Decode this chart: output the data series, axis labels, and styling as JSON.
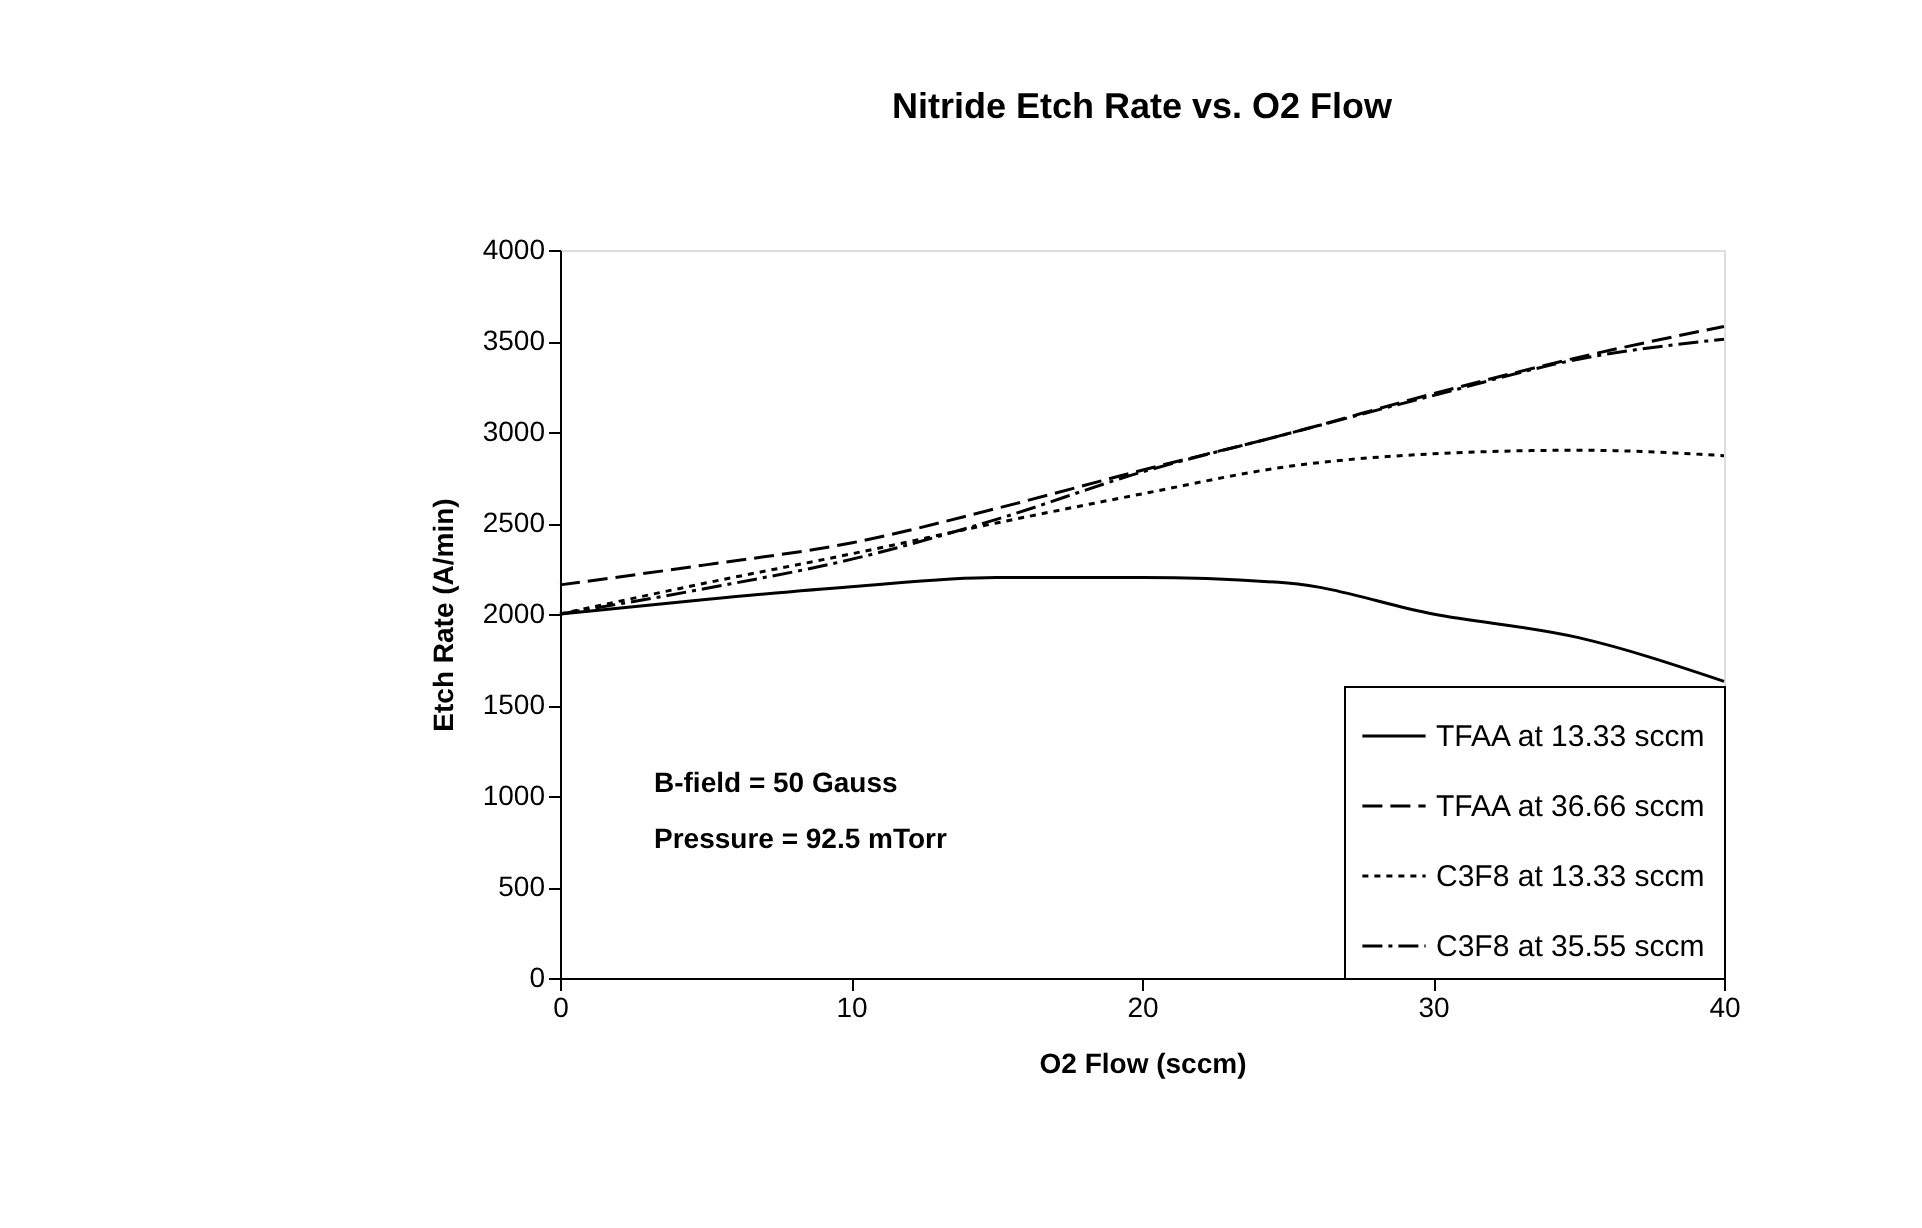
{
  "chart_data": {
    "type": "line",
    "title": "Nitride Etch Rate vs. O2 Flow",
    "xlabel": "O2 Flow (sccm)",
    "ylabel": "Etch Rate (A/min)",
    "x": [
      0,
      5,
      10,
      15,
      20,
      25,
      30,
      35,
      40
    ],
    "series": [
      {
        "name": "TFAA at 13.33 sccm",
        "color": "#000000",
        "line_style": "solid",
        "values": [
          2000,
          2080,
          2150,
          2200,
          2200,
          2170,
          2000,
          1870,
          1630
        ]
      },
      {
        "name": "TFAA at 36.66 sccm",
        "color": "#000000",
        "line_style": "dashed",
        "values": [
          2160,
          2270,
          2390,
          2580,
          2790,
          2990,
          3210,
          3410,
          3580
        ]
      },
      {
        "name": "C3F8 at 13.33 sccm",
        "color": "#000000",
        "line_style": "dotted",
        "values": [
          2000,
          2170,
          2330,
          2500,
          2660,
          2810,
          2880,
          2900,
          2870
        ]
      },
      {
        "name": "C3F8 at 35.55 sccm",
        "color": "#000000",
        "line_style": "dashdot",
        "values": [
          2000,
          2140,
          2300,
          2520,
          2780,
          2990,
          3200,
          3400,
          3510
        ]
      }
    ],
    "xlim": [
      0,
      40
    ],
    "xticks": [
      0,
      10,
      20,
      30,
      40
    ],
    "ylim": [
      0,
      4000
    ],
    "yticks": [
      0,
      500,
      1000,
      1500,
      2000,
      2500,
      3000,
      3500,
      4000
    ],
    "grid": false,
    "legend": "bottom right",
    "marker": "none",
    "annotations": [
      "B-field = 50 Gauss",
      "Pressure = 92.5 mTorr"
    ]
  }
}
